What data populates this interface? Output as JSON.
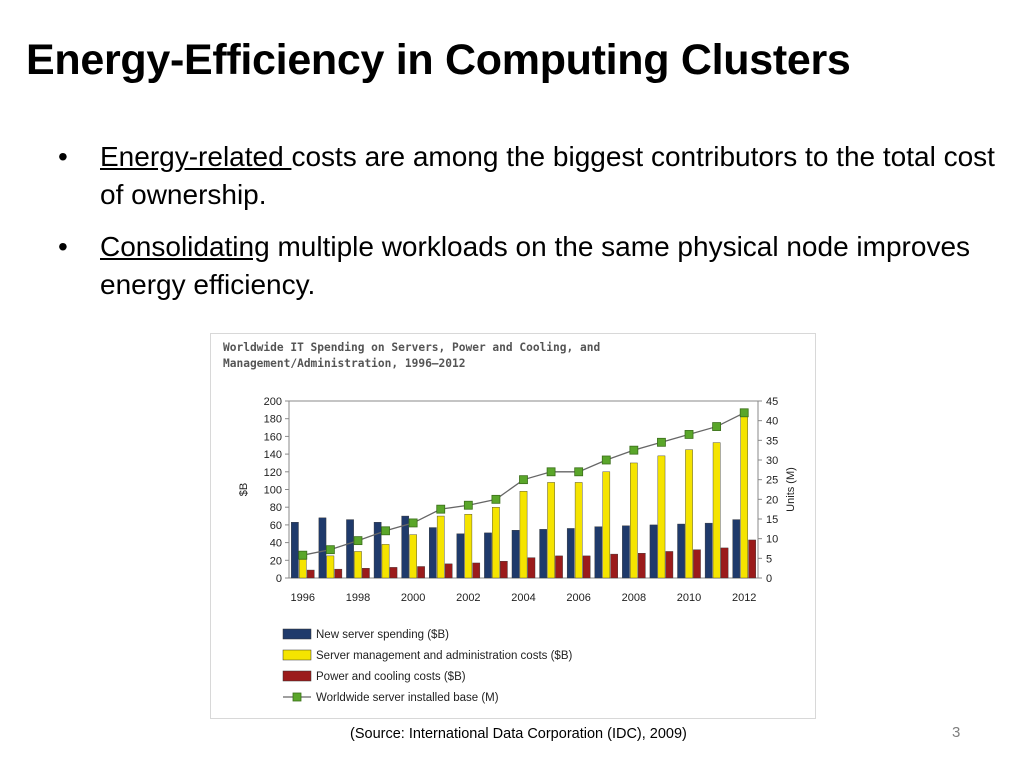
{
  "slide": {
    "title": "Energy-Efficiency in Computing Clusters",
    "bullets": [
      {
        "underlined": "Energy-related ",
        "rest": "costs are among the biggest contributors to the total cost of ownership."
      },
      {
        "underlined": "Consolidating",
        "rest": " multiple workloads on the same physical node improves energy efficiency."
      }
    ],
    "source": "(Source: International Data Corporation (IDC), 2009)",
    "page_number": "3"
  },
  "chart_data": {
    "type": "bar",
    "title": "Worldwide IT Spending on Servers, Power and Cooling, and Management/Administration, 1996–2012",
    "title_lines": [
      "Worldwide IT Spending on Servers, Power and Cooling, and",
      "Management/Administration, 1996–2012"
    ],
    "ylabel": "$B",
    "y2label": "Units (M)",
    "ylim": [
      0,
      200
    ],
    "y2lim": [
      0,
      45
    ],
    "yticks": [
      "0",
      "20",
      "40",
      "60",
      "80",
      "100",
      "120",
      "140",
      "160",
      "180",
      "200"
    ],
    "y2ticks": [
      "0",
      "5",
      "10",
      "15",
      "20",
      "25",
      "30",
      "35",
      "40",
      "45"
    ],
    "categories": [
      "1996",
      "1997",
      "1998",
      "1999",
      "2000",
      "2001",
      "2002",
      "2003",
      "2004",
      "2005",
      "2006",
      "2007",
      "2008",
      "2009",
      "2010",
      "2011",
      "2012"
    ],
    "xtick_labels": [
      "1996",
      "1998",
      "2000",
      "2002",
      "2004",
      "2006",
      "2008",
      "2010",
      "2012"
    ],
    "legend_placement": "bottom",
    "series": [
      {
        "name": "New server spending ($B)",
        "axis": "left",
        "kind": "bar",
        "color": "#1f3a6b",
        "values": [
          63,
          68,
          66,
          63,
          70,
          57,
          50,
          51,
          54,
          55,
          56,
          58,
          59,
          60,
          61,
          62,
          66
        ]
      },
      {
        "name": "Server management and administration costs ($B)",
        "axis": "left",
        "kind": "bar",
        "color": "#f5e400",
        "values": [
          21,
          25,
          30,
          38,
          49,
          70,
          72,
          80,
          98,
          108,
          108,
          120,
          130,
          138,
          145,
          153,
          185
        ]
      },
      {
        "name": "Power and cooling costs ($B)",
        "axis": "left",
        "kind": "bar",
        "color": "#9b1b1b",
        "values": [
          9,
          10,
          11,
          12,
          13,
          16,
          17,
          19,
          23,
          25,
          25,
          27,
          28,
          30,
          32,
          34,
          43
        ]
      },
      {
        "name": "Worldwide server installed base (M)",
        "axis": "right",
        "kind": "line",
        "color": "#5aa62a",
        "values": [
          5.8,
          7.2,
          9.5,
          12,
          14,
          17.5,
          18.5,
          20,
          25,
          27,
          27,
          30,
          32.5,
          34.5,
          36.5,
          38.5,
          42
        ]
      }
    ]
  }
}
